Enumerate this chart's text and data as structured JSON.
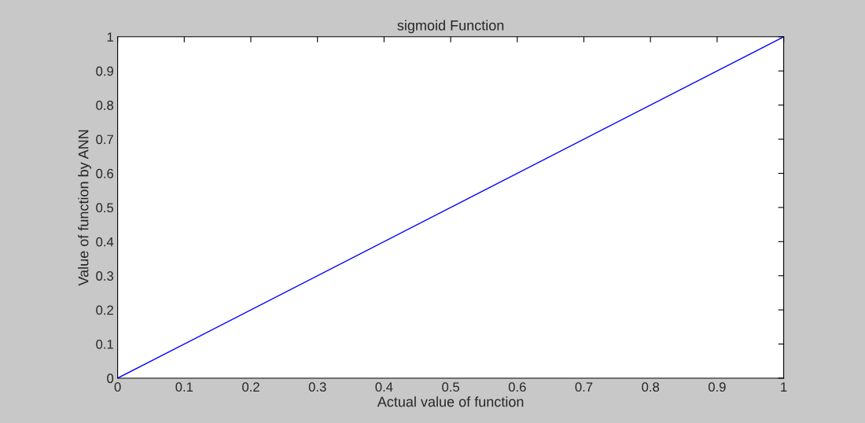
{
  "chart_data": {
    "type": "line",
    "title": "sigmoid Function",
    "xlabel": "Actual value of function",
    "ylabel": "Value of function by ANN",
    "x": [
      0,
      1
    ],
    "series": [
      {
        "color": "#0000ff",
        "values": [
          0,
          1
        ]
      }
    ],
    "xlim": [
      0,
      1
    ],
    "ylim": [
      0,
      1
    ],
    "xticks": [
      0,
      0.1,
      0.2,
      0.3,
      0.4,
      0.5,
      0.6,
      0.7,
      0.8,
      0.9,
      1
    ],
    "yticks": [
      0,
      0.1,
      0.2,
      0.3,
      0.4,
      0.5,
      0.6,
      0.7,
      0.8,
      0.9,
      1
    ],
    "grid": false,
    "legend": false
  }
}
